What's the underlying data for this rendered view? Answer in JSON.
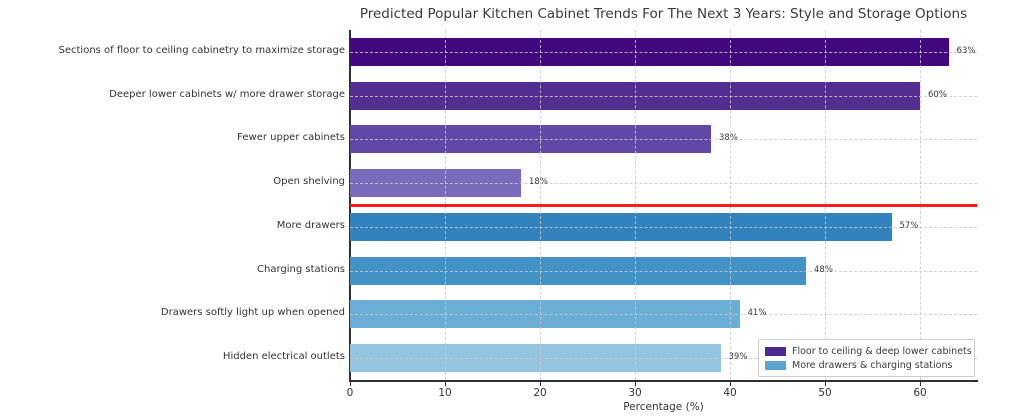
{
  "chart_data": {
    "type": "bar",
    "orientation": "horizontal",
    "title": "Predicted Popular Kitchen Cabinet Trends For The Next 3 Years: Style and Storage Options",
    "xlabel": "Percentage (%)",
    "xlim": [
      0,
      66
    ],
    "xticks": [
      0,
      10,
      20,
      30,
      40,
      50,
      60
    ],
    "grid": "both-dashed",
    "categories": [
      "Sections of floor to ceiling cabinetry to maximize storage",
      "Deeper lower cabinets w/ more drawer storage",
      "Fewer upper cabinets",
      "Open shelving",
      "More drawers",
      "Charging stations",
      "Drawers softly light up when opened",
      "Hidden electrical outlets"
    ],
    "values": [
      63,
      60,
      38,
      18,
      57,
      48,
      41,
      39
    ],
    "value_labels": [
      "63%",
      "60%",
      "38%",
      "18%",
      "57%",
      "48%",
      "41%",
      "39%"
    ],
    "bar_colors": [
      "#43087e",
      "#542d90",
      "#6148a6",
      "#7a6bbd",
      "#3182bd",
      "#4292c6",
      "#6baed6",
      "#94c4df"
    ],
    "divider_line": {
      "color": "#ff1a1a",
      "after_category_index": 3
    },
    "legend": {
      "position": "lower-right",
      "entries": [
        {
          "label": "Floor to ceiling & deep lower cabinets",
          "color": "#4b2991"
        },
        {
          "label": "More drawers & charging stations",
          "color": "#5ba3d0"
        }
      ]
    }
  }
}
